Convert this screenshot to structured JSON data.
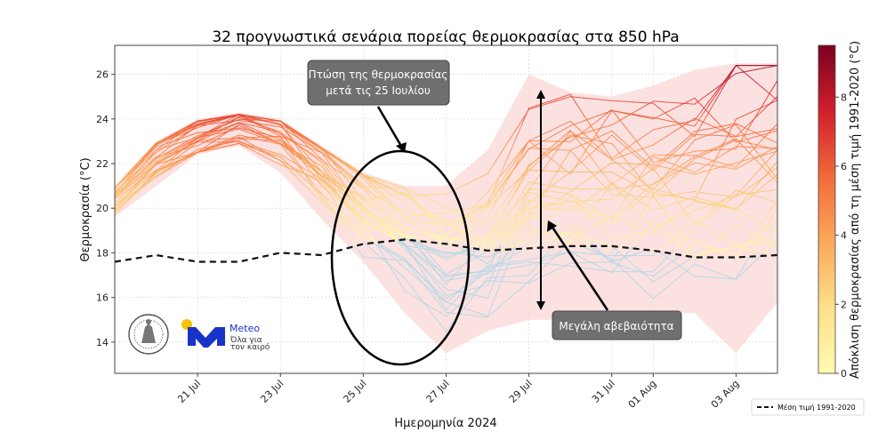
{
  "chart_data": {
    "type": "line",
    "title": "32 προγνωστικά σενάρια πορείας θερμοκρασίας στα 850 hPa",
    "xlabel": "Ημερομηνία 2024",
    "ylabel": "Θερμοκρασία (°C)",
    "xlim": [
      "2024-07-19",
      "2024-08-04"
    ],
    "ylim": [
      12.6,
      27.3
    ],
    "x_ticks": [
      "21 Jul",
      "23 Jul",
      "25 Jul",
      "27 Jul",
      "29 Jul",
      "31 Jul",
      "01 Aug",
      "03 Aug"
    ],
    "x_tick_dates": [
      "2024-07-21",
      "2024-07-23",
      "2024-07-25",
      "2024-07-27",
      "2024-07-29",
      "2024-07-31",
      "2024-08-01",
      "2024-08-03"
    ],
    "y_ticks": [
      14,
      16,
      18,
      20,
      22,
      24,
      26
    ],
    "grid": true,
    "colorbar": {
      "label": "Απόκλιση θερμοκρασίας από τη μέση τιμή 1991-2020 (°C)",
      "ticks": [
        0,
        2,
        4,
        6,
        8
      ],
      "range": [
        0,
        9.5
      ],
      "color_low": "#fffbb0",
      "color_high": "#7a0020",
      "color_below_normal": "#add8e6"
    },
    "reference_series": {
      "name": "Μέση τιμή 1991-2020",
      "x": [
        "2024-07-19",
        "2024-07-20",
        "2024-07-21",
        "2024-07-22",
        "2024-07-23",
        "2024-07-24",
        "2024-07-25",
        "2024-07-26",
        "2024-07-27",
        "2024-07-28",
        "2024-07-29",
        "2024-07-30",
        "2024-07-31",
        "2024-08-01",
        "2024-08-02",
        "2024-08-03",
        "2024-08-04"
      ],
      "values": [
        17.6,
        17.9,
        17.6,
        17.6,
        18.0,
        17.9,
        18.4,
        18.6,
        18.4,
        18.1,
        18.2,
        18.3,
        18.3,
        18.1,
        17.8,
        17.8,
        17.9
      ]
    },
    "ensemble": {
      "members": 32,
      "x": [
        "2024-07-19",
        "2024-07-20",
        "2024-07-21",
        "2024-07-22",
        "2024-07-23",
        "2024-07-24",
        "2024-07-25",
        "2024-07-26",
        "2024-07-27",
        "2024-07-28",
        "2024-07-29",
        "2024-07-30",
        "2024-07-31",
        "2024-08-01",
        "2024-08-02",
        "2024-08-03",
        "2024-08-04"
      ],
      "mean": [
        20.6,
        22.5,
        23.5,
        24.0,
        23.5,
        22.0,
        20.2,
        19.0,
        17.6,
        18.2,
        20.5,
        21.0,
        20.8,
        21.0,
        21.3,
        21.8,
        22.0
      ],
      "spread": [
        0.8,
        1.0,
        1.1,
        1.0,
        1.2,
        1.5,
        1.8,
        2.2,
        2.6,
        3.0,
        3.3,
        3.6,
        3.8,
        3.8,
        4.0,
        4.2,
        4.3
      ],
      "envelope_max": [
        21.0,
        23.0,
        24.0,
        24.3,
        24.0,
        22.8,
        21.6,
        21.0,
        21.0,
        22.6,
        26.0,
        25.2,
        25.0,
        25.5,
        26.2,
        26.5,
        26.5
      ],
      "envelope_min": [
        19.6,
        21.0,
        22.4,
        22.8,
        21.6,
        19.5,
        17.6,
        15.3,
        13.5,
        14.5,
        15.0,
        15.0,
        15.0,
        15.3,
        15.3,
        13.5,
        15.8
      ]
    },
    "annotations": [
      {
        "text": [
          "Πτώση της θερμοκρασίας",
          "μετά τις 25 Ιουλίου"
        ]
      },
      {
        "text": [
          "Μεγάλη αβεβαιότητα"
        ]
      }
    ],
    "legend": {
      "entries": [
        "Μέση τιμή 1991-2020"
      ],
      "placement": "bottom-right"
    }
  },
  "logos": {
    "meteo_name": "Meteo",
    "meteo_tagline": [
      "Όλα για",
      "τον καιρό"
    ]
  },
  "colors": {
    "envelope_fill": "#fbd7d7",
    "annotation_box": "#6f6f6f",
    "meteo_blue": "#1a33c7",
    "meteo_yellow": "#f5c400"
  }
}
